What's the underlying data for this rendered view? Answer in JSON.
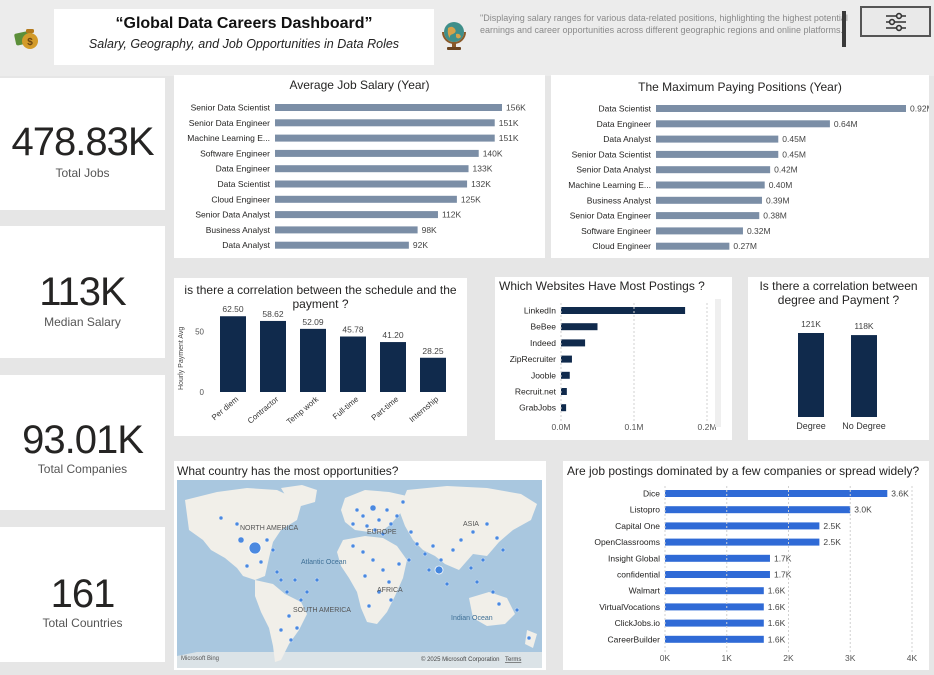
{
  "header": {
    "title": "“Global Data Careers Dashboard”",
    "subtitle": "Salary, Geography, and Job Opportunities in Data Roles",
    "description": "\"Displaying salary ranges for various data-related positions, highlighting the highest potential earnings and career opportunities across different geographic regions and online platforms.\"",
    "icons": [
      "money-bag-icon",
      "globe-icon",
      "filter-sliders-icon"
    ]
  },
  "kpis": [
    {
      "value": "478.83K",
      "label": "Total Jobs"
    },
    {
      "value": "113K",
      "label": "Median Salary"
    },
    {
      "value": "93.01K",
      "label": "Total Companies"
    },
    {
      "value": "161",
      "label": "Total Countries"
    }
  ],
  "colors": {
    "steel_bar": "#7b8ea6",
    "navy_bar": "#102a4c",
    "blue_bar": "#2f6ad6",
    "map_land": "#f1efe9",
    "map_water": "#a9c7df",
    "map_bubble": "#3a7fe0"
  },
  "map": {
    "title": "What country has the most opportunities?",
    "labels": [
      "NORTH AMERICA",
      "EUROPE",
      "ASIA",
      "Atlantic Ocean",
      "AFRICA",
      "SOUTH AMERICA",
      "Indian Ocean"
    ],
    "credit": "Microsoft Bing",
    "copyright": "© 2025 Microsoft Corporation",
    "terms": "Terms"
  },
  "chart_data": [
    {
      "id": "avg_salary",
      "type": "bar",
      "orientation": "horizontal",
      "title": "Average Job Salary (Year)",
      "categories": [
        "Senior Data Scientist",
        "Senior Data Engineer",
        "Machine Learning E...",
        "Software Engineer",
        "Data Engineer",
        "Data Scientist",
        "Cloud Engineer",
        "Senior Data Analyst",
        "Business Analyst",
        "Data Analyst"
      ],
      "values": [
        156,
        151,
        151,
        140,
        133,
        132,
        125,
        112,
        98,
        92
      ],
      "data_labels": [
        "156K",
        "151K",
        "151K",
        "140K",
        "133K",
        "132K",
        "125K",
        "112K",
        "98K",
        "92K"
      ],
      "xlim": [
        0,
        156
      ],
      "color": "#7b8ea6"
    },
    {
      "id": "max_salary",
      "type": "bar",
      "orientation": "horizontal",
      "title": "The Maximum Paying Positions (Year)",
      "categories": [
        "Data Scientist",
        "Data Engineer",
        "Data Analyst",
        "Senior Data Scientist",
        "Senior Data Analyst",
        "Machine Learning E...",
        "Business Analyst",
        "Senior Data Engineer",
        "Software Engineer",
        "Cloud Engineer"
      ],
      "values": [
        0.92,
        0.64,
        0.45,
        0.45,
        0.42,
        0.4,
        0.39,
        0.38,
        0.32,
        0.27
      ],
      "data_labels": [
        "0.92M",
        "0.64M",
        "0.45M",
        "0.45M",
        "0.42M",
        "0.40M",
        "0.39M",
        "0.38M",
        "0.32M",
        "0.27M"
      ],
      "xlim": [
        0,
        0.92
      ],
      "color": "#7b8ea6"
    },
    {
      "id": "schedule",
      "type": "bar",
      "orientation": "vertical",
      "title": "is there a correlation between the schedule and the payment ?",
      "ylabel": "Hourly Payment Avg",
      "categories": [
        "Per diem",
        "Contractor",
        "Temp work",
        "Full-time",
        "Part-time",
        "Internship"
      ],
      "values": [
        62.5,
        58.62,
        52.09,
        45.78,
        41.2,
        28.25
      ],
      "data_labels": [
        "62.50",
        "58.62",
        "52.09",
        "45.78",
        "41.20",
        "28.25"
      ],
      "yticks": [
        "0",
        "50"
      ],
      "ylim": [
        0,
        66
      ],
      "color": "#102a4c"
    },
    {
      "id": "websites",
      "type": "bar",
      "orientation": "horizontal",
      "title": "Which Websites Have Most Postings ?",
      "categories": [
        "LinkedIn",
        "BeBee",
        "Indeed",
        "ZipRecruiter",
        "Jooble",
        "Recruit.net",
        "GrabJobs"
      ],
      "values": [
        0.17,
        0.05,
        0.033,
        0.015,
        0.012,
        0.008,
        0.007
      ],
      "xticks": [
        "0.0M",
        "0.1M",
        "0.2M"
      ],
      "xlim": [
        0,
        0.2
      ],
      "color": "#102a4c"
    },
    {
      "id": "degree",
      "type": "bar",
      "orientation": "vertical",
      "title": "Is there a correlation between degree and Payment ?",
      "categories": [
        "Degree",
        "No Degree"
      ],
      "values": [
        121,
        118
      ],
      "data_labels": [
        "121K",
        "118K"
      ],
      "ylim": [
        0,
        121
      ],
      "color": "#102a4c"
    },
    {
      "id": "companies",
      "type": "bar",
      "orientation": "horizontal",
      "title": "Are job postings dominated by a few companies or spread widely?",
      "categories": [
        "Dice",
        "Listopro",
        "Capital One",
        "OpenClassrooms",
        "Insight Global",
        "confidential",
        "Walmart",
        "VirtualVocations",
        "ClickJobs.io",
        "CareerBuilder"
      ],
      "values": [
        3.6,
        3.0,
        2.5,
        2.5,
        1.7,
        1.7,
        1.6,
        1.6,
        1.6,
        1.6
      ],
      "data_labels": [
        "3.6K",
        "3.0K",
        "2.5K",
        "2.5K",
        "1.7K",
        "1.7K",
        "1.6K",
        "1.6K",
        "1.6K",
        "1.6K"
      ],
      "xticks": [
        "0K",
        "1K",
        "2K",
        "3K",
        "4K"
      ],
      "xlim": [
        0,
        4
      ],
      "color": "#2f6ad6"
    }
  ]
}
